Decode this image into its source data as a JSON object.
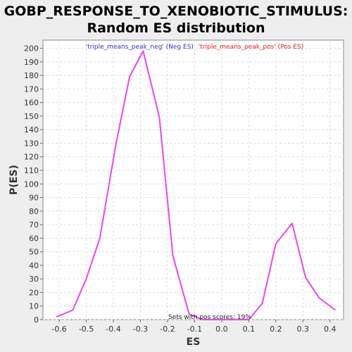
{
  "chart_data": {
    "type": "line",
    "title_line1": "GOBP_RESPONSE_TO_XENOBIOTIC_STIMULUS:",
    "title_line2": "Random ES distribution",
    "xlabel": "ES",
    "ylabel": "P(ES)",
    "xlim": [
      -0.66,
      0.45
    ],
    "ylim": [
      0,
      206
    ],
    "x_ticks": [
      -0.6,
      -0.5,
      -0.4,
      -0.3,
      -0.2,
      -0.1,
      0.0,
      0.1,
      0.2,
      0.3,
      0.4
    ],
    "x_tick_labels": [
      "-0.6",
      "-0.5",
      "-0.4",
      "-0.3",
      "-0.2",
      "-0.1",
      "0.0",
      "0.1",
      "0.2",
      "0.3",
      "0.4"
    ],
    "y_ticks": [
      0,
      10,
      20,
      30,
      40,
      50,
      60,
      70,
      80,
      90,
      100,
      110,
      120,
      130,
      140,
      150,
      160,
      170,
      180,
      190,
      200
    ],
    "y_tick_labels": [
      "0",
      "10",
      "20",
      "30",
      "40",
      "50",
      "60",
      "70",
      "80",
      "90",
      "100",
      "110",
      "120",
      "130",
      "140",
      "150",
      "160",
      "170",
      "180",
      "190",
      "200"
    ],
    "grid": true,
    "legend": {
      "placement": "top-center",
      "neg_label": "'triple_means_peak_neg' (Neg ES)",
      "pos_label": "'triple_means_peak_pos' (Pos ES)",
      "neg_color": "#3333cc",
      "pos_color": "#e02020"
    },
    "annotation": "Sets with pos scores: 19%",
    "series": [
      {
        "color": "#ee44ee",
        "x": [
          -0.61,
          -0.55,
          -0.5,
          -0.45,
          -0.39,
          -0.34,
          -0.29,
          -0.23,
          -0.18,
          -0.12,
          -0.07,
          -0.01,
          0.04,
          0.1,
          0.15,
          0.2,
          0.26,
          0.31,
          0.36,
          0.42
        ],
        "y": [
          2,
          7,
          30,
          60,
          130,
          179,
          198,
          149,
          47,
          4,
          0,
          0,
          0,
          0,
          12,
          56,
          71,
          31,
          16,
          7
        ]
      }
    ]
  }
}
